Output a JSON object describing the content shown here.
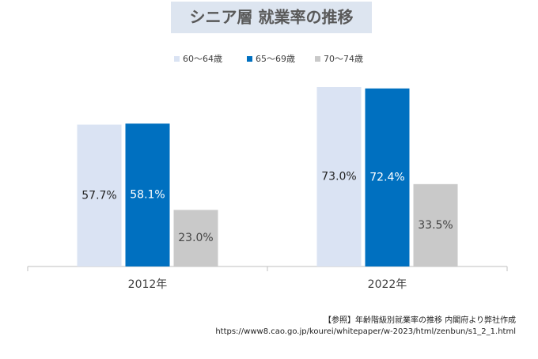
{
  "chart_data": {
    "type": "bar",
    "title": "シニア層 就業率の推移",
    "categories": [
      "2012年",
      "2022年"
    ],
    "series": [
      {
        "name": "60～64歳",
        "color": "#dae3f3",
        "label_color": "#222222",
        "values": [
          57.7,
          73.0
        ],
        "value_labels": [
          "57.7%",
          "73.0%"
        ]
      },
      {
        "name": "65～69歳",
        "color": "#0070c0",
        "label_color": "#ffffff",
        "values": [
          58.1,
          72.4
        ],
        "value_labels": [
          "58.1%",
          "72.4%"
        ]
      },
      {
        "name": "70～74歳",
        "color": "#c9c9c9",
        "label_color": "#444444",
        "values": [
          23.0,
          33.5
        ],
        "value_labels": [
          "23.0%",
          "33.5%"
        ]
      }
    ],
    "legend": "top",
    "annotations": [
      "【参照】年齢階級別就業率の推移 内閣府より弊社作成",
      "https://www8.cao.go.jp/kourei/whitepaper/w-2023/html/zenbun/s1_2_1.html"
    ]
  }
}
